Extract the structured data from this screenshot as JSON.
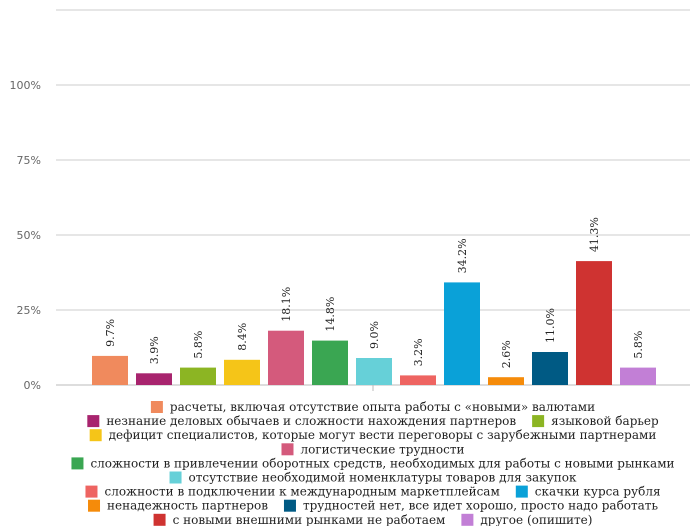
{
  "chart_data": {
    "type": "bar",
    "title": "",
    "xlabel": "",
    "ylabel": "",
    "ylim": [
      0,
      125
    ],
    "y_ticks": [
      0,
      25,
      50,
      75,
      100
    ],
    "y_tick_labels": [
      "0%",
      "25%",
      "50%",
      "75%",
      "100%"
    ],
    "grid": true,
    "legend_position": "bottom",
    "categories": [
      "расчеты, включая отсутствие опыта работы с «новыми» валютами",
      "незнание деловых обычаев и сложности нахождения партнеров",
      "языковой барьер",
      "дефицит специалистов, которые могут вести переговоры с зарубежными партнерами",
      "логистические трудности",
      "сложности в привлечении оборотных средств, необходимых для работы с новыми рынками",
      "отсутствие необходимой номенклатуры товаров для закупок",
      "сложности в подключении к международным маркетплейсам",
      "скачки курса рубля",
      "ненадежность партнеров",
      "трудностей нет, все идет хорошо, просто надо работать",
      "с новыми внешними рынками не работаем",
      "другое (опишите)"
    ],
    "values": [
      9.7,
      3.9,
      5.8,
      8.4,
      18.1,
      14.8,
      9.0,
      3.2,
      34.2,
      2.6,
      11.0,
      41.3,
      5.8
    ],
    "value_labels": [
      "9.7%",
      "3.9%",
      "5.8%",
      "8.4%",
      "18.1%",
      "14.8%",
      "9.0%",
      "3.2%",
      "34.2%",
      "2.6%",
      "11.0%",
      "41.3%",
      "5.8%"
    ],
    "colors": [
      "#f08a5d",
      "#a8246e",
      "#8cb523",
      "#f5c518",
      "#d45a7c",
      "#3aa652",
      "#66d0d8",
      "#ee6461",
      "#0aa1d8",
      "#f58b0a",
      "#005a84",
      "#cf3331",
      "#c27fd6"
    ]
  }
}
